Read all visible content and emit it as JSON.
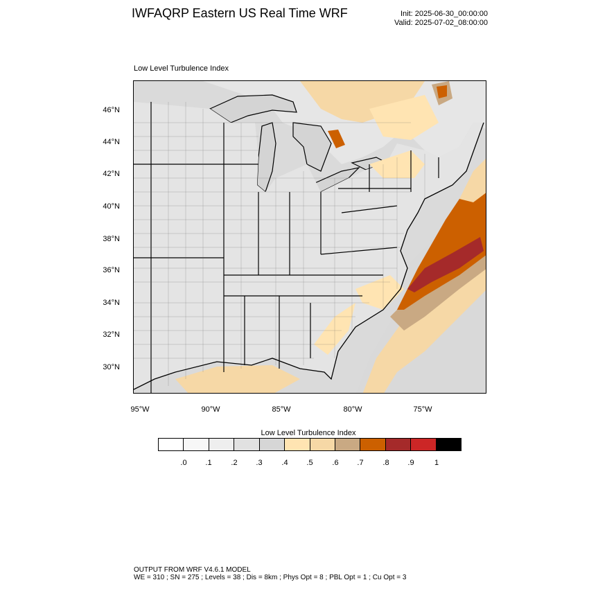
{
  "header": {
    "title": "IWFAQRP Eastern US Real Time WRF",
    "init": "Init: 2025-06-30_00:00:00",
    "valid": "Valid: 2025-07-02_08:00:00"
  },
  "map": {
    "panel_title": "Low Level Turbulence Index",
    "lat_labels": [
      "46°N",
      "44°N",
      "42°N",
      "40°N",
      "38°N",
      "36°N",
      "34°N",
      "32°N",
      "30°N"
    ],
    "lon_labels": [
      "95°W",
      "90°W",
      "85°W",
      "80°W",
      "75°W"
    ],
    "land_color": "#e4e4e4",
    "water_color": "#d6d6d6"
  },
  "legend": {
    "title": "Low Level Turbulence Index",
    "colors": [
      "#ffffff",
      "#f7f7f7",
      "#eeeeee",
      "#e1e1e1",
      "#d6d6d6",
      "#ffe4b2",
      "#f6d8a6",
      "#c9a983",
      "#cc6000",
      "#a52a2a",
      "#cc2626",
      "#000000"
    ],
    "ticks": [
      ".0",
      ".1",
      ".2",
      ".3",
      ".4",
      ".5",
      ".6",
      ".7",
      ".8",
      ".9",
      "1"
    ]
  },
  "footer": {
    "line1": "OUTPUT FROM WRF V4.6.1 MODEL",
    "line2": "WE = 310 ; SN = 275 ; Levels = 38 ; Dis = 8km ; Phys Opt = 8 ; PBL Opt = 1 ; Cu Opt = 3"
  }
}
